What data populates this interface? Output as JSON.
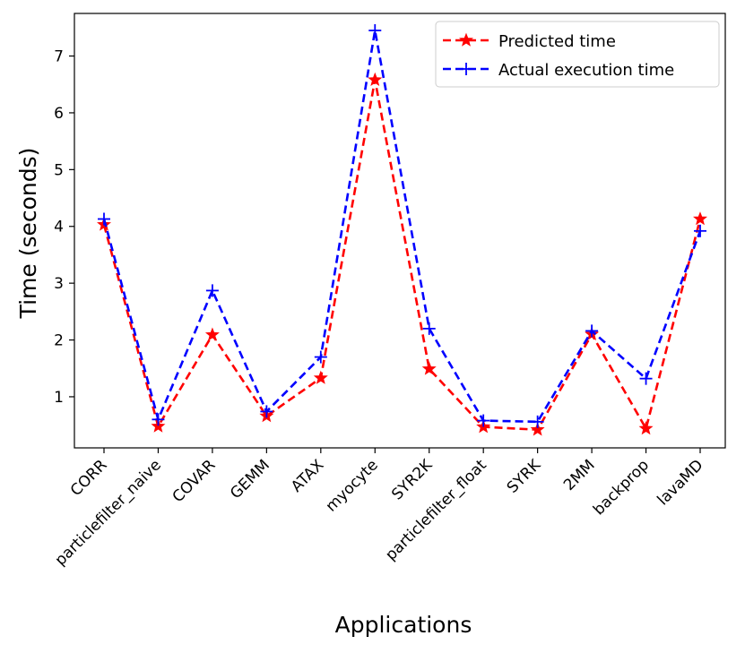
{
  "chart_data": {
    "type": "line",
    "title": "",
    "xlabel": "Applications",
    "ylabel": "Time (seconds)",
    "ylim": [
      0.1,
      7.75
    ],
    "yticks": [
      1,
      2,
      3,
      4,
      5,
      6,
      7
    ],
    "legend_position": "top-right",
    "categories": [
      "CORR",
      "particlefilter_naive",
      "COVAR",
      "GEMM",
      "ATAX",
      "myocyte",
      "SYR2K",
      "particlefilter_float",
      "SYRK",
      "2MM",
      "backprop",
      "lavaMD"
    ],
    "series": [
      {
        "name": "Predicted time",
        "color": "#ff0000",
        "marker": "star",
        "values": [
          4.03,
          0.48,
          2.09,
          0.66,
          1.33,
          6.58,
          1.49,
          0.47,
          0.42,
          2.1,
          0.44,
          4.13
        ]
      },
      {
        "name": "Actual execution time",
        "color": "#0000ff",
        "marker": "plus",
        "values": [
          4.13,
          0.6,
          2.87,
          0.74,
          1.7,
          7.45,
          2.2,
          0.58,
          0.56,
          2.16,
          1.32,
          3.92
        ]
      }
    ]
  }
}
